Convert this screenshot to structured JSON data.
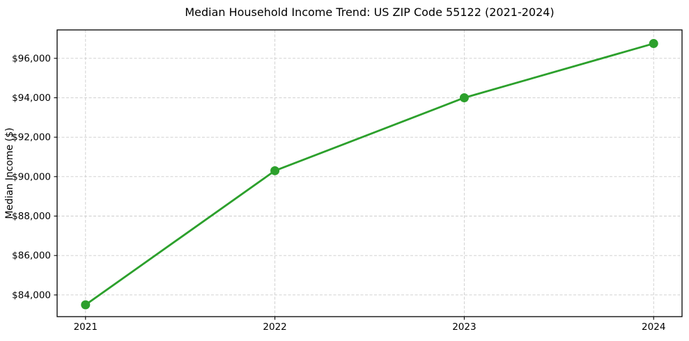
{
  "chart_data": {
    "type": "line",
    "title": "Median Household Income Trend: US ZIP Code 55122 (2021-2024)",
    "xlabel": "",
    "ylabel": "Median Income ($)",
    "categories": [
      2021,
      2022,
      2023,
      2024
    ],
    "series": [
      {
        "name": "Median Household Income",
        "values": [
          83500,
          90300,
          94000,
          96750
        ]
      }
    ],
    "xlim": [
      2020.85,
      2024.15
    ],
    "ylim": [
      82900,
      97440
    ],
    "yticks": [
      84000,
      86000,
      88000,
      90000,
      92000,
      94000,
      96000
    ],
    "ytick_labels": [
      "$84,000",
      "$86,000",
      "$88,000",
      "$90,000",
      "$92,000",
      "$94,000",
      "$96,000"
    ],
    "xtick_labels": [
      "2021",
      "2022",
      "2023",
      "2024"
    ],
    "grid": true,
    "grid_style": "dashed",
    "legend_position": "none",
    "colors": {
      "line": "#2ca02c",
      "marker": "#2ca02c",
      "grid": "#cccccc",
      "spine": "#000000",
      "text": "#000000",
      "background": "#ffffff"
    }
  }
}
